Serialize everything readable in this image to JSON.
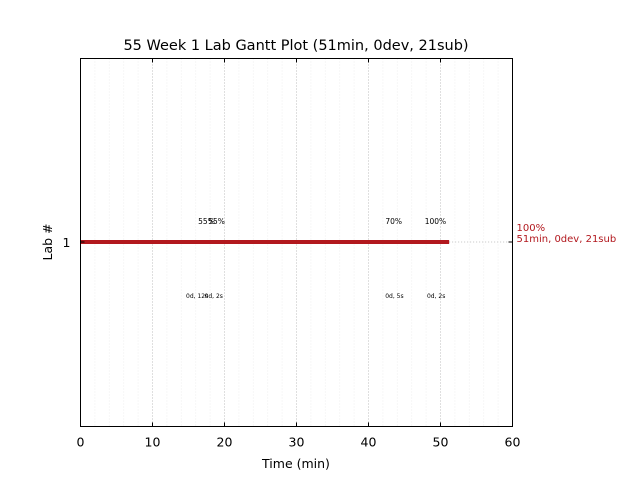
{
  "chart_data": {
    "type": "gantt",
    "title": "55 Week 1 Lab Gantt Plot (51min, 0dev, 21sub)",
    "xlabel": "Time (min)",
    "ylabel": "Lab #",
    "xlim": [
      0,
      60
    ],
    "x_ticks": [
      0,
      10,
      20,
      30,
      40,
      50,
      60
    ],
    "x_tick_labels": [
      "0",
      "10",
      "20",
      "30",
      "40",
      "50",
      "60"
    ],
    "x_minor_step": 2,
    "grid": true,
    "bar_color": "#b2181e",
    "rows": [
      {
        "label": "1",
        "start": 0,
        "end": 51.2,
        "end_label_1": "100%",
        "end_label_2": "51min, 0dev, 21sub",
        "top_annotations": [
          {
            "x": 17.5,
            "text": "55%"
          },
          {
            "x": 18.9,
            "text": "55%"
          },
          {
            "x": 43.5,
            "text": "70%"
          },
          {
            "x": 49.3,
            "text": "100%"
          }
        ],
        "bottom_annotations": [
          {
            "x": 16.2,
            "text": "0d, 12s"
          },
          {
            "x": 18.5,
            "text": "0d, 2s"
          },
          {
            "x": 43.6,
            "text": "0d, 5s"
          },
          {
            "x": 49.4,
            "text": "0d, 2s"
          }
        ]
      }
    ]
  }
}
